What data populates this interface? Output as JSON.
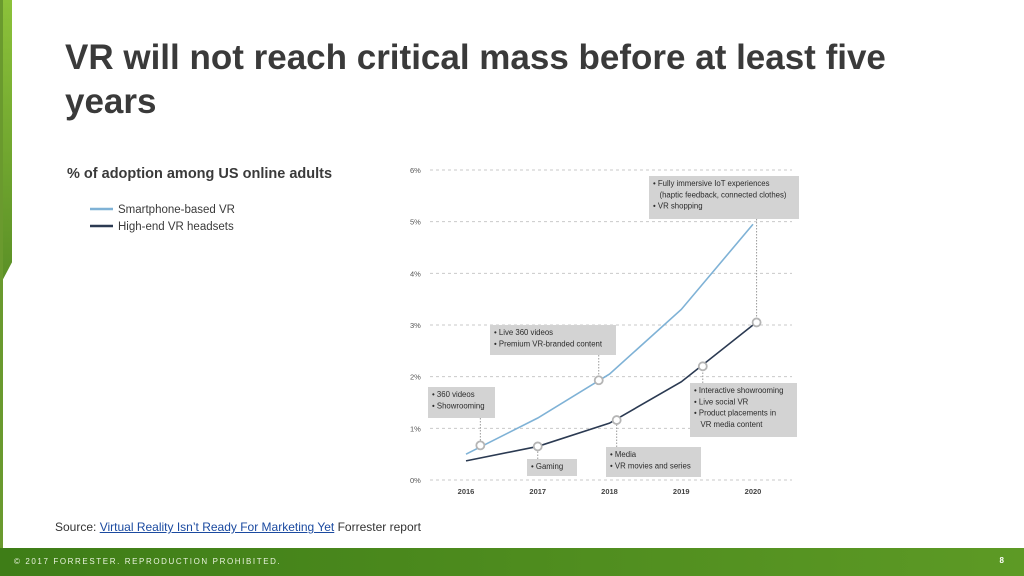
{
  "slide": {
    "title": "VR will not reach critical mass before at least five years",
    "source_prefix": "Source: ",
    "source_link": "Virtual Reality Isn’t Ready For Marketing Yet",
    "source_suffix": " Forrester report",
    "footer_copyright": "© 2017 FORRESTER. REPRODUCTION PROHIBITED.",
    "page_number": "8"
  },
  "colors": {
    "smartphone": "#7fb2d6",
    "highend": "#2b3a52",
    "grid": "#c9c9c9",
    "callout_bg": "#d3d3d3",
    "footer": "#4a8a1e"
  },
  "chart_data": {
    "type": "line",
    "title": "% of adoption among US online adults",
    "x": [
      2016,
      2017,
      2018,
      2019,
      2020
    ],
    "x_tick_labels": [
      "2016",
      "2017",
      "2018",
      "2019",
      "2020"
    ],
    "y_tick_labels": [
      "0%",
      "1%",
      "2%",
      "3%",
      "4%",
      "5%",
      "6%"
    ],
    "ylim": [
      0,
      6
    ],
    "grid": true,
    "legend_position": "top-left",
    "series": [
      {
        "name": "Smartphone-based VR",
        "x": [
          2016,
          2017,
          2018,
          2019,
          2020
        ],
        "values": [
          0.5,
          1.2,
          2.05,
          3.3,
          4.95
        ]
      },
      {
        "name": "High-end VR headsets",
        "x": [
          2016,
          2017,
          2018,
          2019,
          2020
        ],
        "values": [
          0.37,
          0.65,
          1.1,
          1.9,
          3.0
        ]
      }
    ],
    "markers": [
      {
        "x": 2016.2,
        "y": 0.67
      },
      {
        "x": 2017.0,
        "y": 0.65
      },
      {
        "x": 2017.85,
        "y": 1.93
      },
      {
        "x": 2018.1,
        "y": 1.16
      },
      {
        "x": 2019.3,
        "y": 2.2
      },
      {
        "x": 2020.05,
        "y": 3.05
      }
    ],
    "annotations": [
      {
        "name": "callout-360-videos",
        "lines": [
          "• 360 videos",
          "• Showrooming"
        ]
      },
      {
        "name": "callout-gaming",
        "lines": [
          "• Gaming"
        ]
      },
      {
        "name": "callout-live-360",
        "lines": [
          "• Live 360 videos",
          "• Premium VR-branded content"
        ]
      },
      {
        "name": "callout-media",
        "lines": [
          "• Media",
          "• VR movies and series"
        ]
      },
      {
        "name": "callout-interactive",
        "lines": [
          "• Interactive showrooming",
          "• Live social VR",
          "• Product placements in",
          "  VR media content"
        ]
      },
      {
        "name": "callout-iot",
        "lines": [
          "• Fully immersive IoT experiences",
          "  (haptic feedback, connected clothes)",
          "• VR shopping"
        ]
      }
    ]
  }
}
